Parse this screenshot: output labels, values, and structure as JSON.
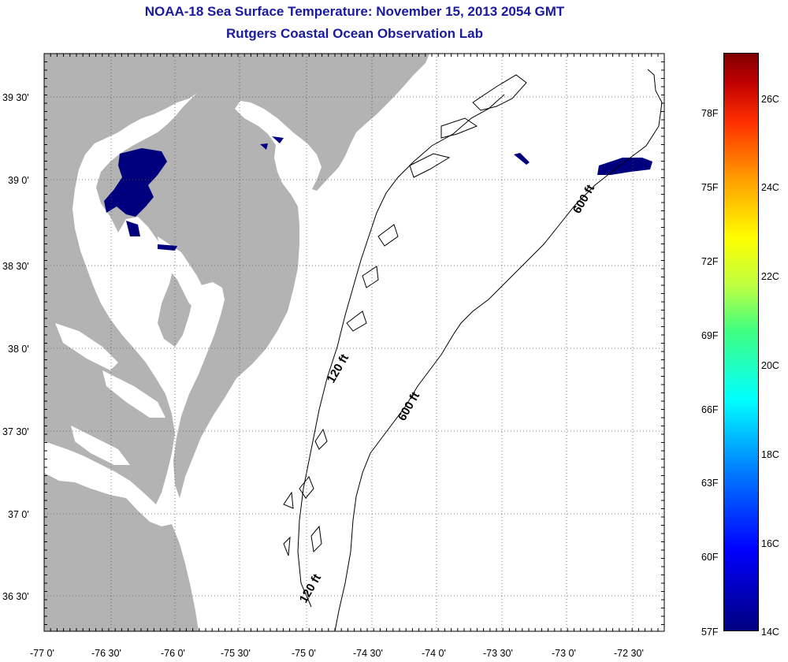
{
  "title_line1": "NOAA-18 Sea Surface Temperature:  November 15, 2013 2054 GMT",
  "title_line2": "Rutgers Coastal Ocean Observation Lab",
  "lon_labels": [
    "-77 0'",
    "-76 30'",
    "-76 0'",
    "-75 30'",
    "-75 0'",
    "-74 30'",
    "-74 0'",
    "-73 30'",
    "-73 0'",
    "-72 30'"
  ],
  "lat_labels": [
    "39 30'",
    "39 0'",
    "38 30'",
    "38 0'",
    "37 30'",
    "37 0'",
    "36 30'"
  ],
  "isobaths": {
    "a": "120 ft",
    "b": "600 ft",
    "c": "600 ft",
    "d": "120 ft"
  },
  "colorbar": {
    "fahrenheit": [
      "78F",
      "75F",
      "72F",
      "69F",
      "66F",
      "63F",
      "60F",
      "57F"
    ],
    "celsius": [
      "26C",
      "24C",
      "22C",
      "20C",
      "18C",
      "16C",
      "14C"
    ]
  },
  "colors": {
    "title": "#1a1a9c",
    "land": "#b3b3b3",
    "cold_water": "#00007f",
    "water": "#ffffff"
  }
}
